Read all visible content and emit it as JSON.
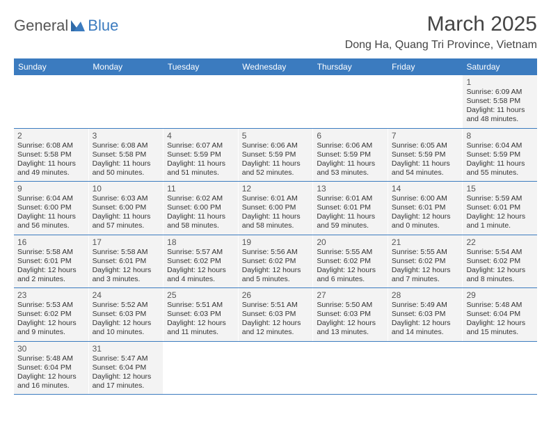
{
  "brand": {
    "part1": "General",
    "part2": "Blue"
  },
  "title": "March 2025",
  "location": "Dong Ha, Quang Tri Province, Vietnam",
  "weekdays": [
    "Sunday",
    "Monday",
    "Tuesday",
    "Wednesday",
    "Thursday",
    "Friday",
    "Saturday"
  ],
  "colors": {
    "header_bg": "#3b7bbf",
    "cell_bg": "#f3f3f3",
    "page_bg": "#ffffff",
    "text": "#333333",
    "logo_gray": "#555555",
    "logo_blue": "#3b7bbf"
  },
  "layout": {
    "first_weekday_index": 6,
    "days_in_month": 31
  },
  "days": {
    "1": {
      "sunrise": "6:09 AM",
      "sunset": "5:58 PM",
      "daylight": "11 hours and 48 minutes."
    },
    "2": {
      "sunrise": "6:08 AM",
      "sunset": "5:58 PM",
      "daylight": "11 hours and 49 minutes."
    },
    "3": {
      "sunrise": "6:08 AM",
      "sunset": "5:58 PM",
      "daylight": "11 hours and 50 minutes."
    },
    "4": {
      "sunrise": "6:07 AM",
      "sunset": "5:59 PM",
      "daylight": "11 hours and 51 minutes."
    },
    "5": {
      "sunrise": "6:06 AM",
      "sunset": "5:59 PM",
      "daylight": "11 hours and 52 minutes."
    },
    "6": {
      "sunrise": "6:06 AM",
      "sunset": "5:59 PM",
      "daylight": "11 hours and 53 minutes."
    },
    "7": {
      "sunrise": "6:05 AM",
      "sunset": "5:59 PM",
      "daylight": "11 hours and 54 minutes."
    },
    "8": {
      "sunrise": "6:04 AM",
      "sunset": "5:59 PM",
      "daylight": "11 hours and 55 minutes."
    },
    "9": {
      "sunrise": "6:04 AM",
      "sunset": "6:00 PM",
      "daylight": "11 hours and 56 minutes."
    },
    "10": {
      "sunrise": "6:03 AM",
      "sunset": "6:00 PM",
      "daylight": "11 hours and 57 minutes."
    },
    "11": {
      "sunrise": "6:02 AM",
      "sunset": "6:00 PM",
      "daylight": "11 hours and 58 minutes."
    },
    "12": {
      "sunrise": "6:01 AM",
      "sunset": "6:00 PM",
      "daylight": "11 hours and 58 minutes."
    },
    "13": {
      "sunrise": "6:01 AM",
      "sunset": "6:01 PM",
      "daylight": "11 hours and 59 minutes."
    },
    "14": {
      "sunrise": "6:00 AM",
      "sunset": "6:01 PM",
      "daylight": "12 hours and 0 minutes."
    },
    "15": {
      "sunrise": "5:59 AM",
      "sunset": "6:01 PM",
      "daylight": "12 hours and 1 minute."
    },
    "16": {
      "sunrise": "5:58 AM",
      "sunset": "6:01 PM",
      "daylight": "12 hours and 2 minutes."
    },
    "17": {
      "sunrise": "5:58 AM",
      "sunset": "6:01 PM",
      "daylight": "12 hours and 3 minutes."
    },
    "18": {
      "sunrise": "5:57 AM",
      "sunset": "6:02 PM",
      "daylight": "12 hours and 4 minutes."
    },
    "19": {
      "sunrise": "5:56 AM",
      "sunset": "6:02 PM",
      "daylight": "12 hours and 5 minutes."
    },
    "20": {
      "sunrise": "5:55 AM",
      "sunset": "6:02 PM",
      "daylight": "12 hours and 6 minutes."
    },
    "21": {
      "sunrise": "5:55 AM",
      "sunset": "6:02 PM",
      "daylight": "12 hours and 7 minutes."
    },
    "22": {
      "sunrise": "5:54 AM",
      "sunset": "6:02 PM",
      "daylight": "12 hours and 8 minutes."
    },
    "23": {
      "sunrise": "5:53 AM",
      "sunset": "6:02 PM",
      "daylight": "12 hours and 9 minutes."
    },
    "24": {
      "sunrise": "5:52 AM",
      "sunset": "6:03 PM",
      "daylight": "12 hours and 10 minutes."
    },
    "25": {
      "sunrise": "5:51 AM",
      "sunset": "6:03 PM",
      "daylight": "12 hours and 11 minutes."
    },
    "26": {
      "sunrise": "5:51 AM",
      "sunset": "6:03 PM",
      "daylight": "12 hours and 12 minutes."
    },
    "27": {
      "sunrise": "5:50 AM",
      "sunset": "6:03 PM",
      "daylight": "12 hours and 13 minutes."
    },
    "28": {
      "sunrise": "5:49 AM",
      "sunset": "6:03 PM",
      "daylight": "12 hours and 14 minutes."
    },
    "29": {
      "sunrise": "5:48 AM",
      "sunset": "6:04 PM",
      "daylight": "12 hours and 15 minutes."
    },
    "30": {
      "sunrise": "5:48 AM",
      "sunset": "6:04 PM",
      "daylight": "12 hours and 16 minutes."
    },
    "31": {
      "sunrise": "5:47 AM",
      "sunset": "6:04 PM",
      "daylight": "12 hours and 17 minutes."
    }
  },
  "labels": {
    "sunrise_prefix": "Sunrise: ",
    "sunset_prefix": "Sunset: ",
    "daylight_prefix": "Daylight: "
  }
}
